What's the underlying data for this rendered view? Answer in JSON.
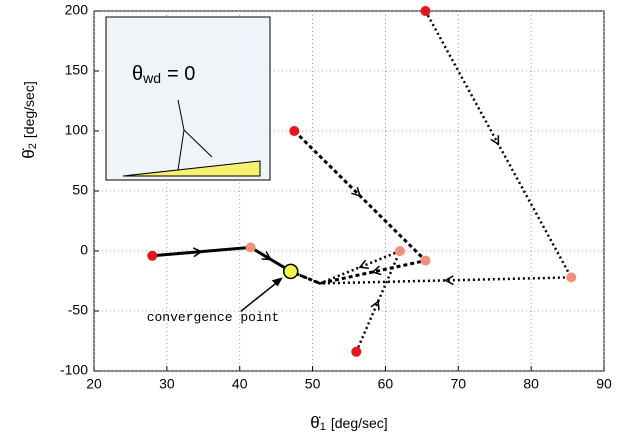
{
  "chart_data": {
    "type": "line",
    "x_label": {
      "symbol": "θ̇",
      "sub": "1",
      "unit": "[deg/sec]"
    },
    "y_label": {
      "symbol": "θ̇",
      "sub": "2",
      "unit": "[deg/sec]"
    },
    "xlim": [
      20,
      90
    ],
    "xticks": [
      20,
      30,
      40,
      50,
      60,
      70,
      80,
      90
    ],
    "ylim": [
      -100,
      200
    ],
    "yticks": [
      -100,
      -50,
      0,
      50,
      100,
      150,
      200
    ],
    "grid": true,
    "start_color": "#e8141a",
    "turn_color": "#f0907c",
    "series": [
      {
        "style": "solid",
        "color": "#000000",
        "x": [
          28,
          41.5,
          47
        ],
        "y": [
          -4,
          3,
          -17
        ]
      },
      {
        "style": "dashed",
        "color": "#000000",
        "x": [
          47.5,
          65.5,
          51,
          47
        ],
        "y": [
          100,
          -8,
          -27,
          -17
        ]
      },
      {
        "style": "dotted",
        "color": "#000000",
        "x": [
          65.5,
          85.5,
          51,
          47
        ],
        "y": [
          200,
          -22,
          -27,
          -17
        ]
      },
      {
        "style": "dotted",
        "color": "#000000",
        "x": [
          56,
          62,
          51,
          47
        ],
        "y": [
          -84,
          0,
          -27,
          -17
        ]
      }
    ],
    "convergence": {
      "x": 47,
      "y": -17,
      "color": "#f5f542",
      "label": "convergence point"
    },
    "inset": {
      "symbol": "θ",
      "sub": "wd",
      "text": "= 0"
    }
  }
}
